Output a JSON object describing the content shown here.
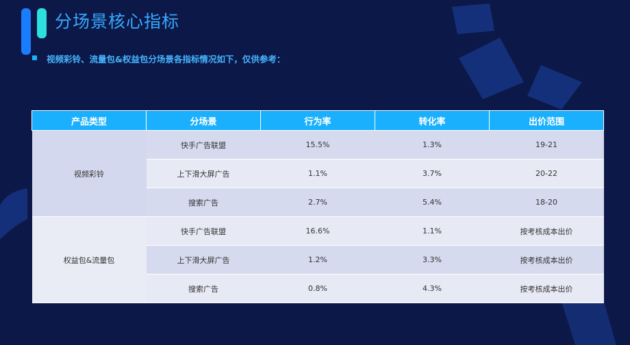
{
  "header": {
    "title": "分场景核心指标",
    "bullet": "视频彩铃、流量包&权益包分场景各指标情况如下，仅供参考："
  },
  "table": {
    "columns": [
      "产品类型",
      "分场景",
      "行为率",
      "转化率",
      "出价范围"
    ],
    "groups": [
      {
        "name": "视频彩铃",
        "rows": [
          [
            "快手广告联盟",
            "15.5%",
            "1.3%",
            "19-21"
          ],
          [
            "上下滑大屏广告",
            "1.1%",
            "3.7%",
            "20-22"
          ],
          [
            "搜索广告",
            "2.7%",
            "5.4%",
            "18-20"
          ]
        ]
      },
      {
        "name": "权益包&流量包",
        "rows": [
          [
            "快手广告联盟",
            "16.6%",
            "1.1%",
            "按考核成本出价"
          ],
          [
            "上下滑大屏广告",
            "1.2%",
            "3.3%",
            "按考核成本出价"
          ],
          [
            "搜索广告",
            "0.8%",
            "4.3%",
            "按考核成本出价"
          ]
        ]
      }
    ]
  }
}
